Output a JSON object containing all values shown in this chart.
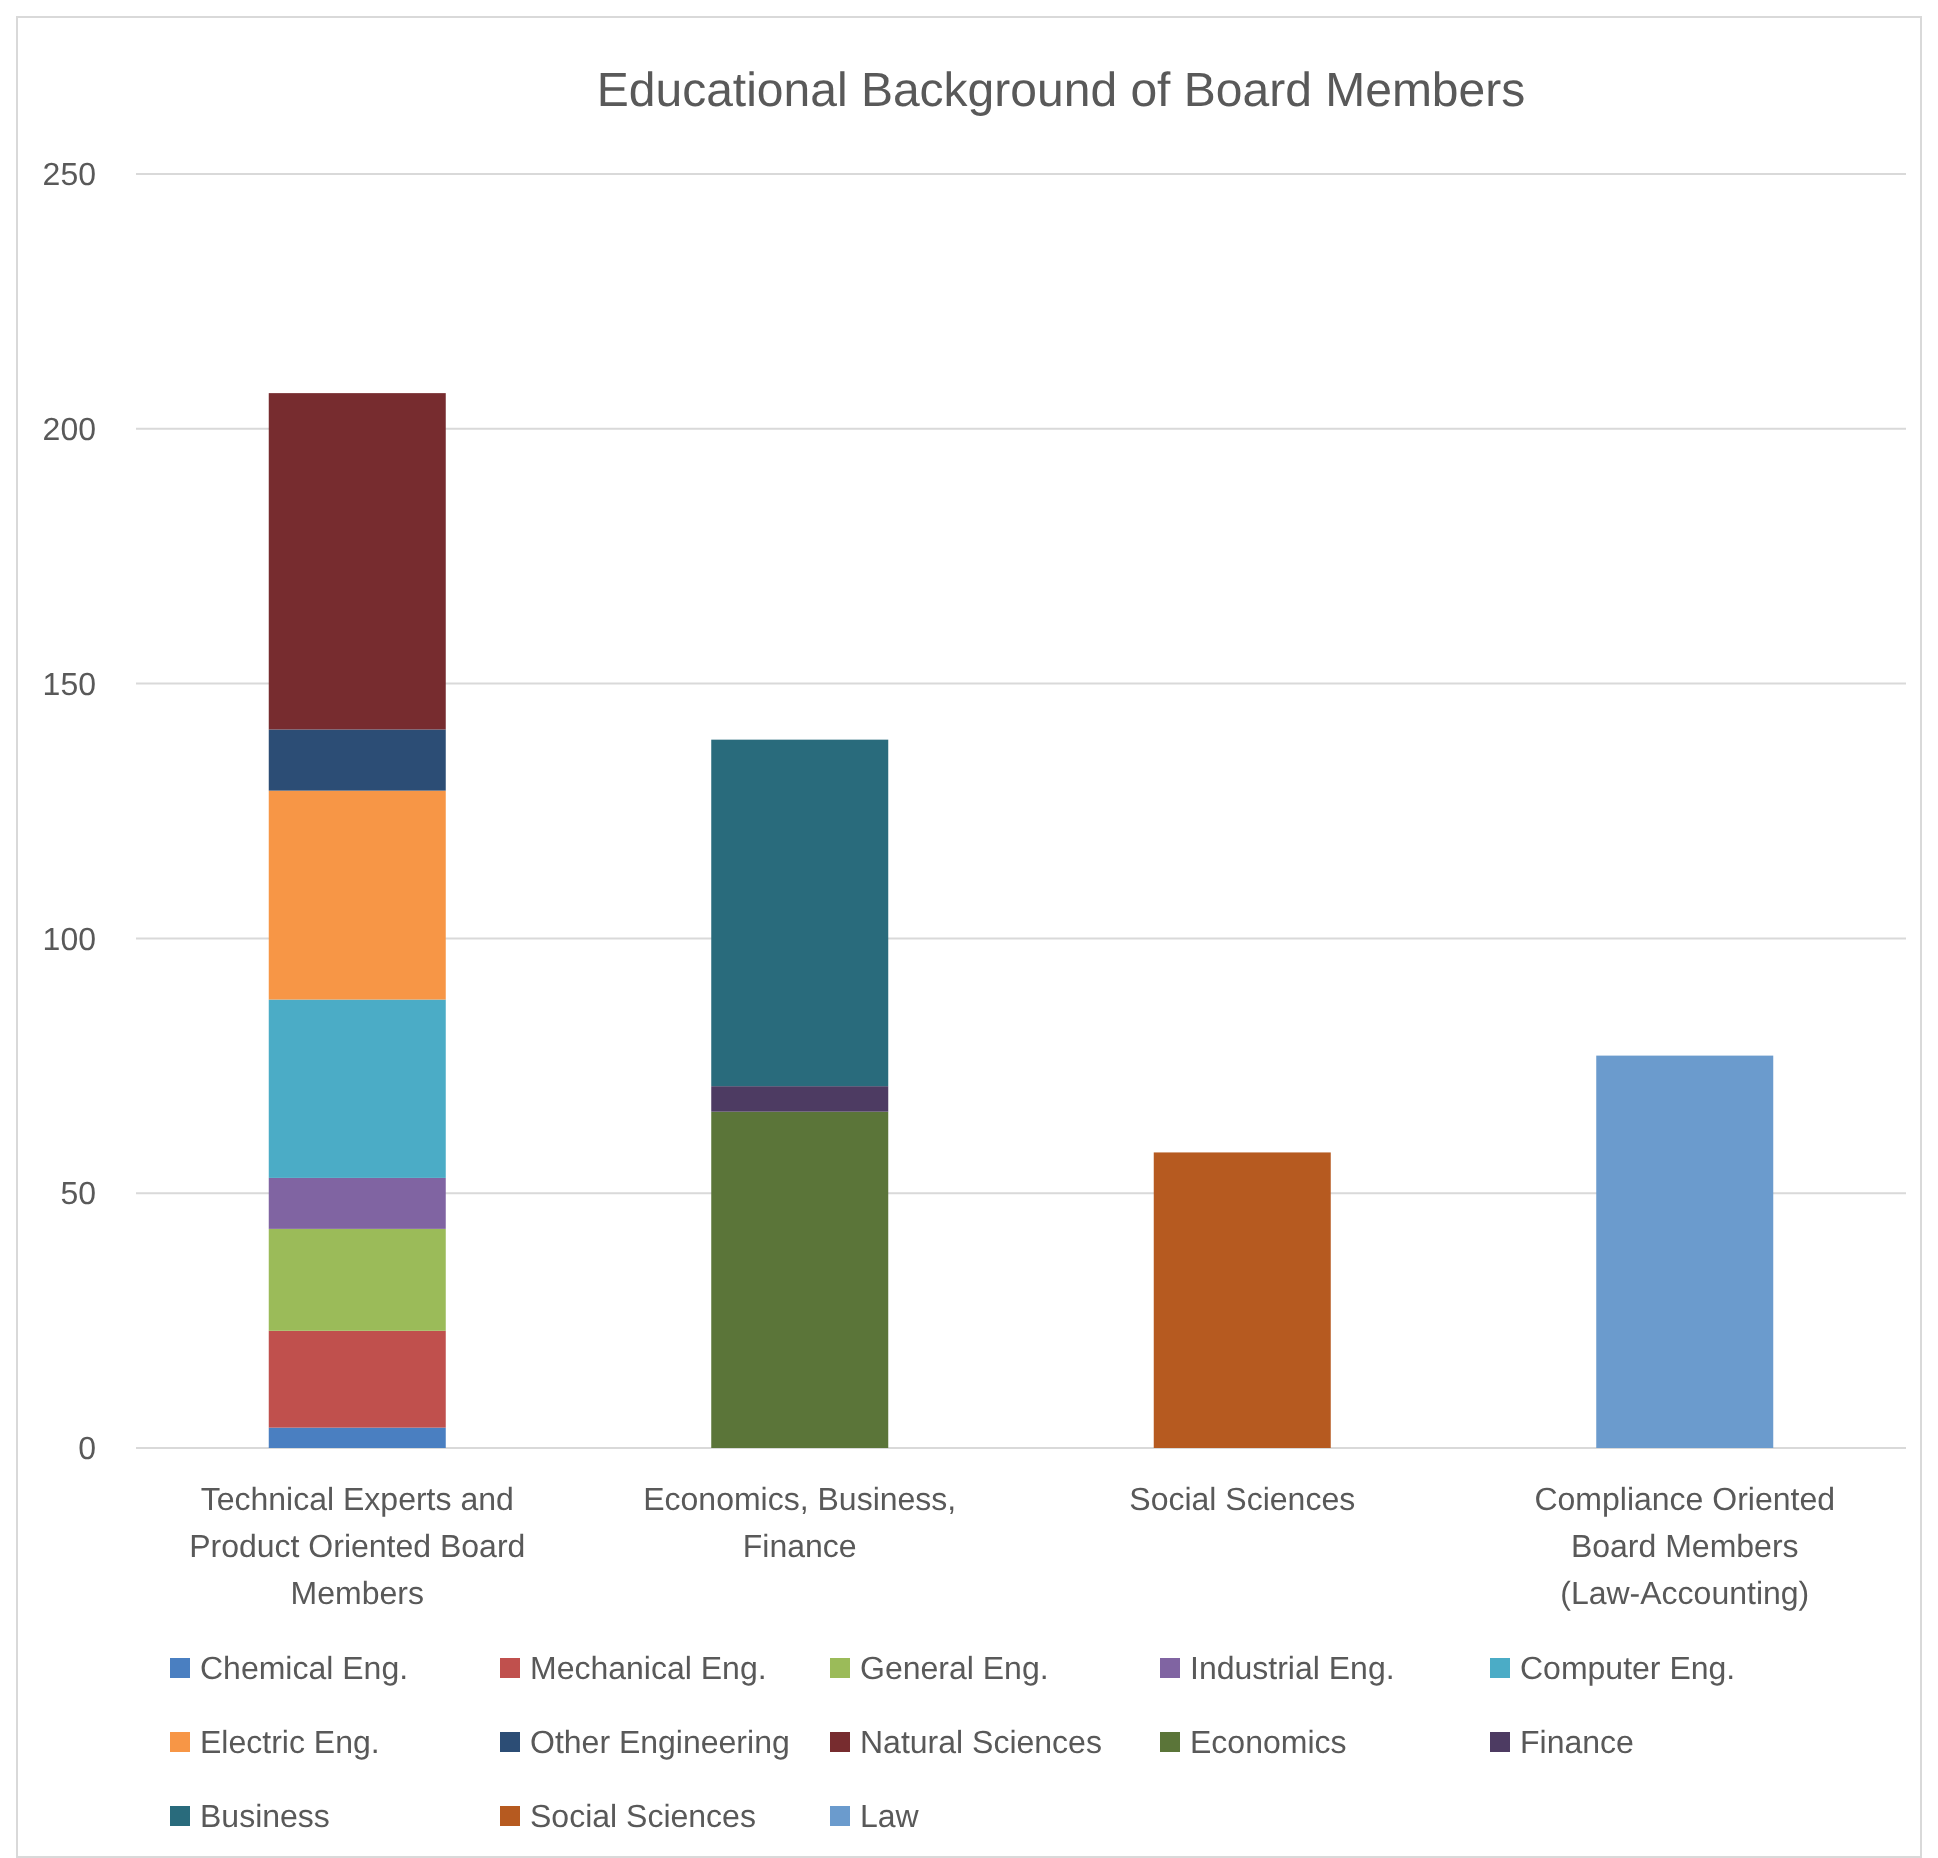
{
  "chart_data": {
    "type": "bar",
    "title": "Educational Background of Board Members",
    "categories": [
      "Technical Experts and Product Oriented Board Members",
      "Economics, Business, Finance",
      "Social Sciences",
      "Compliance Oriented Board Members (Law-Accounting)"
    ],
    "stacked": true,
    "ylim": [
      0,
      250
    ],
    "yticks": [
      0,
      50,
      100,
      150,
      200,
      250
    ],
    "grid": "y",
    "legend": "bottom",
    "series": [
      {
        "name": "Chemical Eng.",
        "color": "#4a7fc1",
        "values": [
          4,
          null,
          null,
          null
        ]
      },
      {
        "name": "Mechanical Eng.",
        "color": "#c0504d",
        "values": [
          19,
          null,
          null,
          null
        ]
      },
      {
        "name": "General Eng.",
        "color": "#9bbb59",
        "values": [
          20,
          null,
          null,
          null
        ]
      },
      {
        "name": "Industrial Eng.",
        "color": "#8064a2",
        "values": [
          10,
          null,
          null,
          null
        ]
      },
      {
        "name": "Computer Eng.",
        "color": "#4bacc6",
        "values": [
          35,
          null,
          null,
          null
        ]
      },
      {
        "name": "Electric Eng.",
        "color": "#f79646",
        "values": [
          41,
          null,
          null,
          null
        ]
      },
      {
        "name": "Other Engineering",
        "color": "#2c4d75",
        "values": [
          12,
          null,
          null,
          null
        ]
      },
      {
        "name": "Natural Sciences",
        "color": "#772c2f",
        "values": [
          66,
          null,
          null,
          null
        ]
      },
      {
        "name": "Economics",
        "color": "#5b7539",
        "values": [
          null,
          66,
          null,
          null
        ]
      },
      {
        "name": "Finance",
        "color": "#4d3b62",
        "values": [
          null,
          5,
          null,
          null
        ]
      },
      {
        "name": "Business",
        "color": "#296b7c",
        "values": [
          null,
          68,
          null,
          null
        ]
      },
      {
        "name": "Social Sciences",
        "color": "#b65a20",
        "values": [
          null,
          null,
          58,
          null
        ]
      },
      {
        "name": "Law",
        "color": "#6b9bcd",
        "values": [
          null,
          null,
          null,
          77
        ]
      }
    ]
  }
}
